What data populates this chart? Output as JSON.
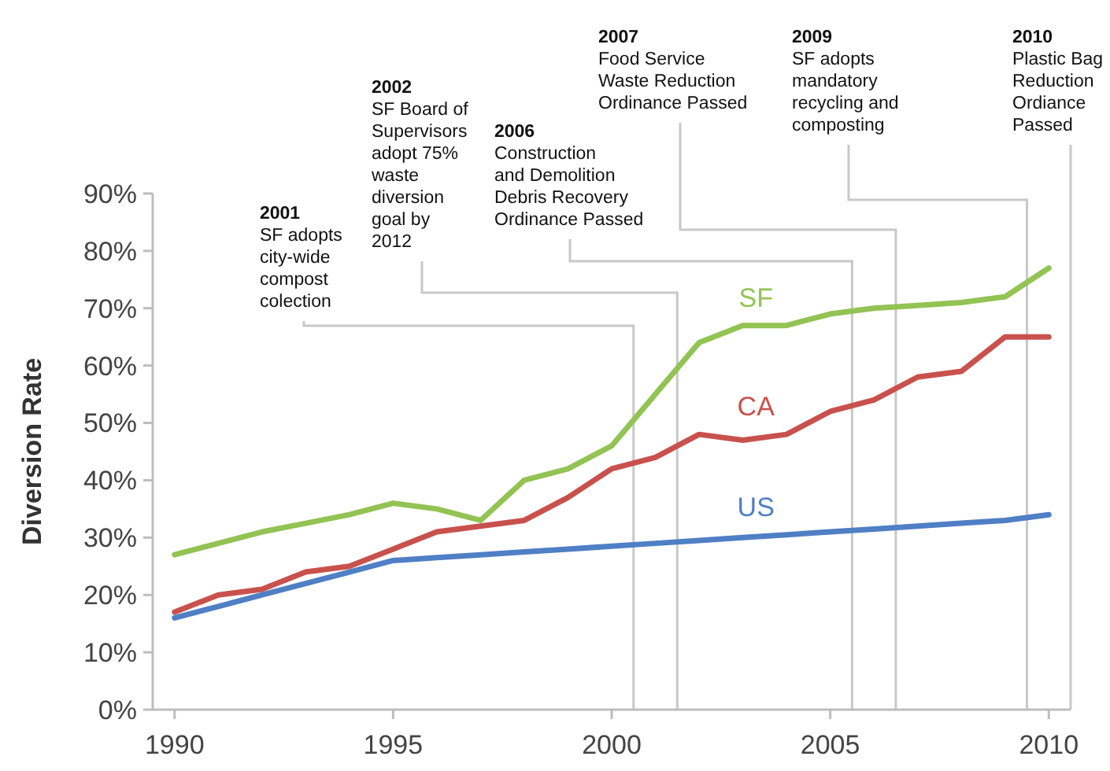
{
  "chart_data": {
    "type": "line",
    "ylabel": "Diversion Rate",
    "x": [
      1990,
      1991,
      1992,
      1993,
      1994,
      1995,
      1996,
      1997,
      1998,
      1999,
      2000,
      2001,
      2002,
      2003,
      2004,
      2005,
      2006,
      2007,
      2008,
      2009,
      2010
    ],
    "series": [
      {
        "name": "SF",
        "color": "#92c353",
        "values": [
          27,
          29,
          31,
          32.5,
          34,
          36,
          35,
          33,
          40,
          42,
          46,
          55,
          64,
          67,
          67,
          69,
          70,
          70.5,
          71,
          72,
          77
        ]
      },
      {
        "name": "CA",
        "color": "#c9514d",
        "values": [
          17,
          20,
          21,
          24,
          25,
          28,
          31,
          32,
          33,
          37,
          42,
          44,
          48,
          47,
          48,
          52,
          54,
          58,
          59,
          65,
          65
        ]
      },
      {
        "name": "US",
        "color": "#4f7fc4",
        "values": [
          16,
          18,
          20,
          22,
          24,
          26,
          26.5,
          27,
          27.5,
          28,
          28.5,
          29,
          29.5,
          30,
          30.5,
          31,
          31.5,
          32,
          32.5,
          33,
          34
        ]
      }
    ],
    "xlim": [
      1989.5,
      2010.5
    ],
    "xticks": [
      {
        "value": 1990,
        "label": "1990"
      },
      {
        "value": 1995,
        "label": "1995"
      },
      {
        "value": 2000,
        "label": "2000"
      },
      {
        "value": 2005,
        "label": "2005"
      },
      {
        "value": 2010,
        "label": "2010"
      }
    ],
    "ylim": [
      0,
      90
    ],
    "yticks": [
      {
        "value": 0,
        "label": "0%"
      },
      {
        "value": 10,
        "label": "10%"
      },
      {
        "value": 20,
        "label": "20%"
      },
      {
        "value": 30,
        "label": "30%"
      },
      {
        "value": 40,
        "label": "40%"
      },
      {
        "value": 50,
        "label": "50%"
      },
      {
        "value": 60,
        "label": "60%"
      },
      {
        "value": 70,
        "label": "70%"
      },
      {
        "value": 80,
        "label": "80%"
      },
      {
        "value": 90,
        "label": "90%"
      }
    ],
    "ref_lines": [
      {
        "axis": "x",
        "value": 2000.5,
        "label": "2001\nSF adopts\ncity-wide\ncompost\ncolection",
        "color": "#c8c8c8"
      },
      {
        "axis": "x",
        "value": 2001.5,
        "label": "2002\nSF Board of\nSupervisors\nadopt 75%\nwaste\ndiversion\ngoal by\n2012",
        "color": "#c8c8c8"
      },
      {
        "axis": "x",
        "value": 2005.5,
        "label": "2006\nConstruction\nand Demolition\nDebris Recovery\nOrdinance Passed",
        "color": "#c8c8c8"
      },
      {
        "axis": "x",
        "value": 2006.5,
        "label": "2007\nFood Service\nWaste Reduction\nOrdinance Passed",
        "color": "#c8c8c8"
      },
      {
        "axis": "x",
        "value": 2009.5,
        "label": "2009\nSF adopts\nmandatory\nrecycling and\ncomposting",
        "color": "#c8c8c8"
      },
      {
        "axis": "x",
        "value": 2010.5,
        "label": "2010\nPlastic Bag\nReduction\nOrdiance\nPassed",
        "color": "#c8c8c8"
      }
    ],
    "grid": false,
    "legend": false,
    "marker": "none",
    "line_style": "solid"
  }
}
